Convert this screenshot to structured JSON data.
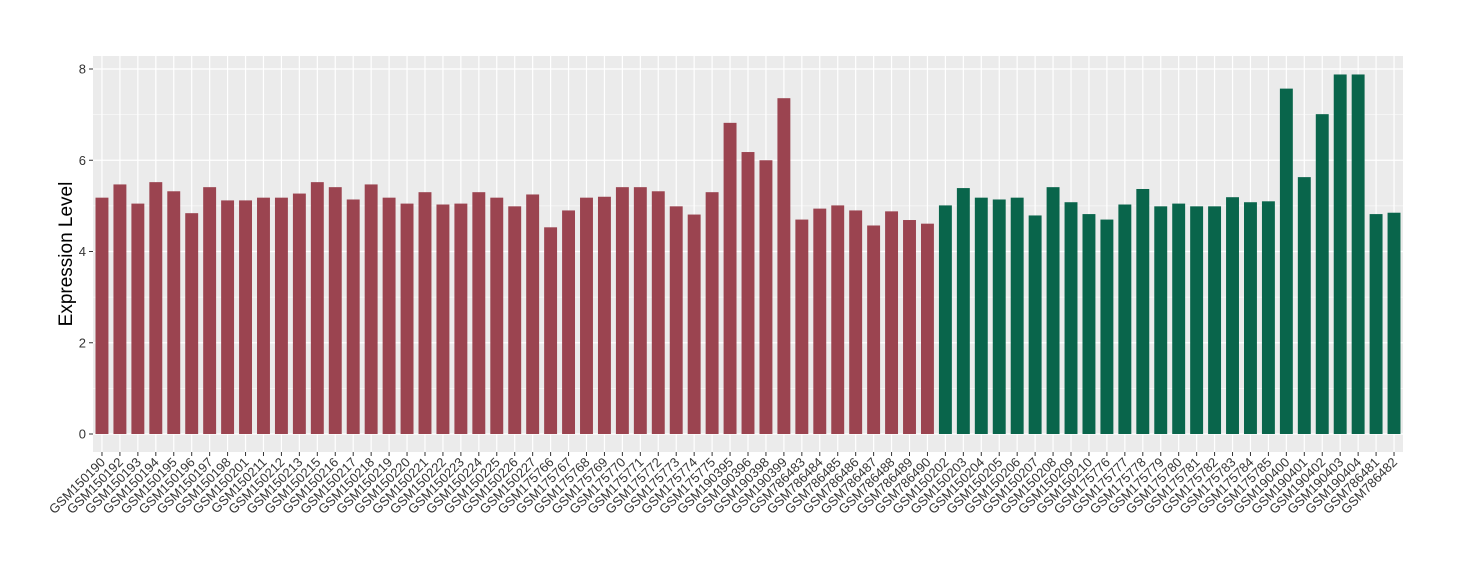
{
  "chart_data": {
    "type": "bar",
    "title": "",
    "xlabel": "",
    "ylabel": "Expression Level",
    "ylim": [
      0,
      8.3
    ],
    "yticks": [
      0,
      2,
      4,
      6,
      8
    ],
    "grid": true,
    "legend": "none",
    "colors": {
      "group1": "#9b4450",
      "group2": "#09654b",
      "panel": "#ebebeb",
      "grid": "#ffffff"
    },
    "categories": [
      "GSM150190",
      "GSM150192",
      "GSM150193",
      "GSM150194",
      "GSM150195",
      "GSM150196",
      "GSM150197",
      "GSM150198",
      "GSM150201",
      "GSM150211",
      "GSM150212",
      "GSM150213",
      "GSM150215",
      "GSM150216",
      "GSM150217",
      "GSM150218",
      "GSM150219",
      "GSM150220",
      "GSM150221",
      "GSM150222",
      "GSM150223",
      "GSM150224",
      "GSM150225",
      "GSM150226",
      "GSM150227",
      "GSM175766",
      "GSM175767",
      "GSM175768",
      "GSM175769",
      "GSM175770",
      "GSM175771",
      "GSM175772",
      "GSM175773",
      "GSM175774",
      "GSM175775",
      "GSM190395",
      "GSM190396",
      "GSM190398",
      "GSM190399",
      "GSM786483",
      "GSM786484",
      "GSM786485",
      "GSM786486",
      "GSM786487",
      "GSM786488",
      "GSM786489",
      "GSM786490",
      "GSM150202",
      "GSM150203",
      "GSM150204",
      "GSM150205",
      "GSM150206",
      "GSM150207",
      "GSM150208",
      "GSM150209",
      "GSM150210",
      "GSM175776",
      "GSM175777",
      "GSM175778",
      "GSM175779",
      "GSM175780",
      "GSM175781",
      "GSM175782",
      "GSM175783",
      "GSM175784",
      "GSM175785",
      "GSM190400",
      "GSM190401",
      "GSM190402",
      "GSM190403",
      "GSM190404",
      "GSM786481",
      "GSM786482"
    ],
    "values": [
      5.18,
      5.47,
      5.05,
      5.52,
      5.32,
      4.84,
      5.41,
      5.12,
      5.12,
      5.18,
      5.18,
      5.27,
      5.52,
      5.41,
      5.14,
      5.47,
      5.18,
      5.05,
      5.3,
      5.03,
      5.05,
      5.3,
      5.18,
      4.99,
      5.25,
      4.53,
      4.9,
      5.18,
      5.2,
      5.41,
      5.41,
      5.32,
      4.99,
      4.81,
      5.3,
      6.82,
      6.18,
      6.0,
      7.36,
      4.7,
      4.94,
      5.01,
      4.9,
      4.57,
      4.88,
      4.69,
      4.61,
      5.01,
      5.39,
      5.18,
      5.14,
      5.18,
      4.79,
      5.41,
      5.08,
      4.82,
      4.7,
      5.03,
      5.37,
      4.99,
      5.05,
      4.99,
      4.99,
      5.19,
      5.08,
      5.1,
      7.57,
      5.63,
      7.01,
      7.88,
      7.88,
      4.82,
      4.85
    ],
    "groups": [
      1,
      1,
      1,
      1,
      1,
      1,
      1,
      1,
      1,
      1,
      1,
      1,
      1,
      1,
      1,
      1,
      1,
      1,
      1,
      1,
      1,
      1,
      1,
      1,
      1,
      1,
      1,
      1,
      1,
      1,
      1,
      1,
      1,
      1,
      1,
      1,
      1,
      1,
      1,
      1,
      1,
      1,
      1,
      1,
      1,
      1,
      1,
      2,
      2,
      2,
      2,
      2,
      2,
      2,
      2,
      2,
      2,
      2,
      2,
      2,
      2,
      2,
      2,
      2,
      2,
      2,
      2,
      2,
      2,
      2,
      2,
      2,
      2
    ]
  }
}
